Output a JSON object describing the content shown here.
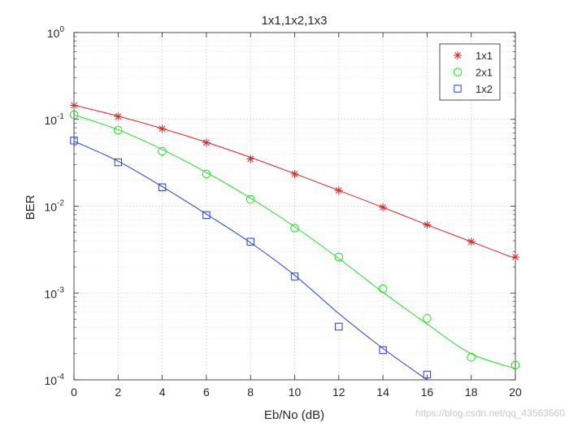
{
  "chart_data": {
    "type": "line",
    "title": "1x1,1x2,1x3",
    "xlabel": "Eb/No (dB)",
    "ylabel": "BER",
    "xlim": [
      0,
      20
    ],
    "ylim": [
      0.0001,
      1
    ],
    "yscale": "log",
    "x_ticks": [
      0,
      2,
      4,
      6,
      8,
      10,
      12,
      14,
      16,
      18,
      20
    ],
    "y_ticks": [
      {
        "value": 1,
        "base": "10",
        "exp": "0"
      },
      {
        "value": 0.1,
        "base": "10",
        "exp": "-1"
      },
      {
        "value": 0.01,
        "base": "10",
        "exp": "-2"
      },
      {
        "value": 0.001,
        "base": "10",
        "exp": "-3"
      },
      {
        "value": 0.0001,
        "base": "10",
        "exp": "-4"
      }
    ],
    "grid": true,
    "minor_grid": true,
    "legend_position": "top-right",
    "series": [
      {
        "name": "1x1",
        "color": "#d62728",
        "marker": "asterisk",
        "marker_x": [
          0,
          2,
          4,
          6,
          8,
          10,
          12,
          14,
          16,
          18,
          20
        ],
        "marker_y": [
          0.145,
          0.108,
          0.078,
          0.054,
          0.035,
          0.0235,
          0.0152,
          0.0097,
          0.0061,
          0.0039,
          0.0026
        ],
        "line_x": [
          0,
          2,
          4,
          6,
          8,
          10,
          12,
          14,
          16,
          18,
          20
        ],
        "line_y": [
          0.146,
          0.109,
          0.0785,
          0.0545,
          0.0365,
          0.0237,
          0.0152,
          0.0097,
          0.0061,
          0.0039,
          0.0025
        ]
      },
      {
        "name": "2x1",
        "color": "#22e022",
        "marker": "circle",
        "marker_x": [
          0,
          2,
          4,
          6,
          8,
          10,
          12,
          14,
          16,
          18,
          20
        ],
        "marker_y": [
          0.113,
          0.075,
          0.043,
          0.0235,
          0.012,
          0.0056,
          0.0026,
          0.00112,
          0.00051,
          0.000182,
          0.000148
        ],
        "line_x": [
          0,
          2,
          4,
          6,
          8,
          10,
          12,
          14,
          16,
          18,
          20
        ],
        "line_y": [
          0.113,
          0.076,
          0.045,
          0.0245,
          0.0124,
          0.0058,
          0.0025,
          0.00102,
          0.00044,
          0.0002,
          0.000135
        ]
      },
      {
        "name": "1x2",
        "color": "#1f3fd6",
        "marker": "square",
        "marker_x": [
          0,
          2,
          4,
          6,
          8,
          10,
          12,
          14,
          16
        ],
        "marker_y": [
          0.057,
          0.032,
          0.0165,
          0.0079,
          0.0039,
          0.00155,
          0.00041,
          0.00022,
          0.000115
        ],
        "line_x": [
          0,
          2,
          4,
          6,
          8,
          10,
          12,
          14,
          16
        ],
        "line_y": [
          0.056,
          0.033,
          0.0168,
          0.0081,
          0.0038,
          0.0016,
          0.00058,
          0.00023,
          0.0001
        ]
      }
    ]
  },
  "watermark": "https://blog.csdn.net/qq_43563660"
}
